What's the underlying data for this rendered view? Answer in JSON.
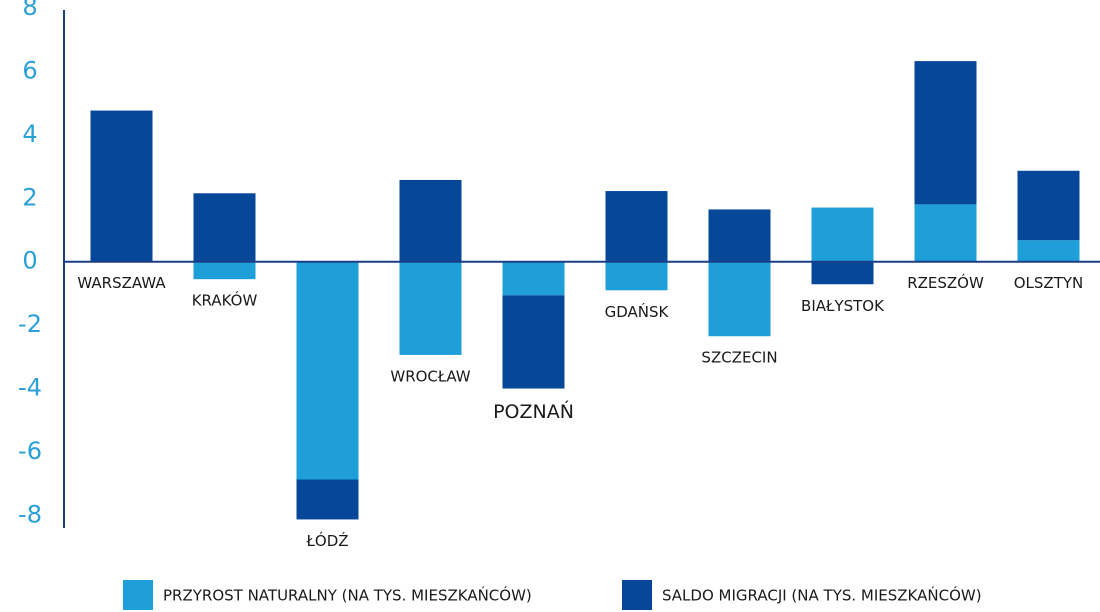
{
  "chart_data": {
    "type": "bar",
    "categories": [
      "WARSZAWA",
      "KRAKÓW",
      "ŁÓDŹ",
      "WROCŁAW",
      "POZNAŃ",
      "GDAŃSK",
      "SZCZECIN",
      "BIAŁYSTOK",
      "RZESZÓW",
      "OLSZTYN"
    ],
    "highlight": "POZNAŃ",
    "highlight_color": "#1b4f9c",
    "stacked": true,
    "series": [
      {
        "name": "PRZYROST NATURALNY (NA TYS. MIESZKAŃCÓW)",
        "color": "#1e9fd9",
        "values": [
          0,
          -0.55,
          -6.87,
          -2.94,
          -1.06,
          -0.9,
          -2.35,
          1.71,
          1.81,
          0.68
        ]
      },
      {
        "name": "SALDO MIGRACJI (NA TYS. MIESZKAŃCÓW)",
        "color": "#06479a",
        "values": [
          4.77,
          2.16,
          -1.26,
          2.58,
          -2.94,
          2.23,
          1.65,
          -0.71,
          4.52,
          2.19
        ]
      }
    ],
    "ylim": [
      -8.4,
      8.1
    ],
    "yticks": [
      -8,
      -6,
      -4,
      -2,
      0,
      2,
      4,
      6,
      8
    ]
  }
}
